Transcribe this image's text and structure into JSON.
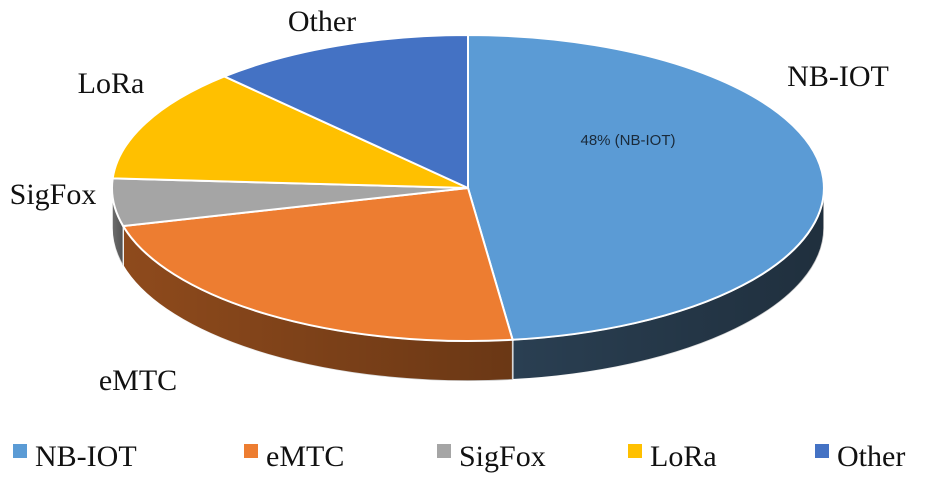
{
  "chart_data": {
    "type": "pie",
    "variant": "3d",
    "categories": [
      "NB-IOT",
      "eMTC",
      "SigFox",
      "LoRa",
      "Other"
    ],
    "values": [
      48,
      23,
      5,
      12,
      12
    ],
    "unit": "%",
    "colors": [
      "#5b9bd5",
      "#ed7d31",
      "#a5a5a5",
      "#ffc000",
      "#4472c4"
    ],
    "side_colors": [
      "#2a3f52",
      "#8e4a1c",
      "#6e6e6e",
      "#a67f00",
      "#2c4a80"
    ],
    "data_labels": [
      "48% (NB-IOT)",
      "",
      "",
      "",
      ""
    ],
    "legend": {
      "placement": "bottom",
      "entries": [
        "NB-IOT",
        "eMTC",
        "SigFox",
        "LoRa",
        "Other"
      ]
    }
  }
}
